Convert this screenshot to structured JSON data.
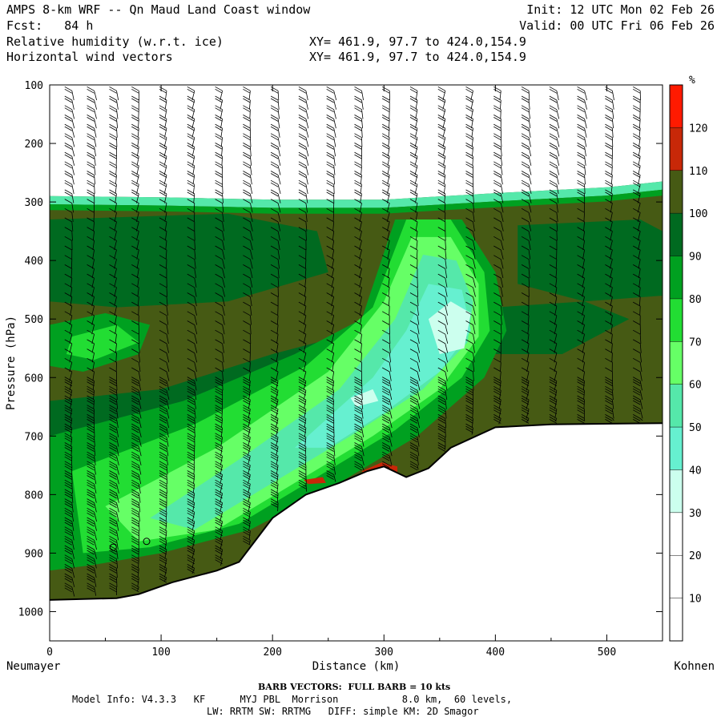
{
  "header": {
    "title_line": "AMPS 8-km WRF -- Qn Maud Land Coast window",
    "fcst_line": "Fcst:   84 h",
    "field1": "Relative humidity (w.r.t. ice)",
    "field2": "Horizontal wind vectors",
    "init_line": "Init: 12 UTC Mon 02 Feb 26",
    "valid_line": "Valid: 00 UTC Fri 06 Feb 26",
    "xy1": "XY= 461.9, 97.7 to 424.0,154.9",
    "xy2": "XY= 461.9, 97.7 to 424.0,154.9"
  },
  "chart_data": {
    "type": "heatmap",
    "xlabel": "Distance (km)",
    "ylabel": "Pressure (hPa)",
    "xlim": [
      0,
      550
    ],
    "ylim": [
      1050,
      100
    ],
    "x_ticks": [
      0,
      100,
      200,
      300,
      400,
      500
    ],
    "y_ticks": [
      100,
      200,
      300,
      400,
      500,
      600,
      700,
      800,
      900,
      1000
    ],
    "left_endpoint": "Neumayer",
    "right_endpoint": "Kohnen",
    "colorbar": {
      "unit": "%",
      "levels": [
        10,
        20,
        30,
        40,
        50,
        60,
        70,
        80,
        90,
        100,
        110,
        120
      ],
      "colors": [
        "#ffffff",
        "#ffffff",
        "#ffffff",
        "#ccffee",
        "#66f0d0",
        "#55e8aa",
        "#66ff66",
        "#22dd33",
        "#00a020",
        "#006a20",
        "#465a14",
        "#c82808",
        "#ff1a00"
      ]
    },
    "terrain_surface": [
      {
        "x": 0,
        "p": 980
      },
      {
        "x": 60,
        "p": 977
      },
      {
        "x": 80,
        "p": 970
      },
      {
        "x": 110,
        "p": 950
      },
      {
        "x": 150,
        "p": 930
      },
      {
        "x": 170,
        "p": 915
      },
      {
        "x": 200,
        "p": 840
      },
      {
        "x": 230,
        "p": 800
      },
      {
        "x": 260,
        "p": 780
      },
      {
        "x": 285,
        "p": 760
      },
      {
        "x": 300,
        "p": 752
      },
      {
        "x": 320,
        "p": 770
      },
      {
        "x": 340,
        "p": 755
      },
      {
        "x": 360,
        "p": 720
      },
      {
        "x": 400,
        "p": 685
      },
      {
        "x": 450,
        "p": 680
      },
      {
        "x": 550,
        "p": 678
      }
    ],
    "moist_layer_top": [
      {
        "x": 0,
        "p": 290
      },
      {
        "x": 100,
        "p": 292
      },
      {
        "x": 200,
        "p": 296
      },
      {
        "x": 300,
        "p": 296
      },
      {
        "x": 400,
        "p": 285
      },
      {
        "x": 500,
        "p": 275
      },
      {
        "x": 550,
        "p": 265
      }
    ],
    "rh_regions": [
      {
        "name": "saturated band",
        "rh": 105
      },
      {
        "name": "moist core",
        "rh": 95
      },
      {
        "name": "dry intrusion slot",
        "rh": 50
      },
      {
        "name": "dry intrusion core",
        "rh": 35
      },
      {
        "name": "near-surface supersaturation",
        "rh": 115
      }
    ],
    "barb_columns_x": [
      20,
      40,
      60,
      80,
      105,
      130,
      155,
      180,
      205,
      230,
      255,
      280,
      305,
      330,
      355,
      380,
      405,
      430,
      455,
      480,
      505,
      530
    ],
    "calm_points": [
      {
        "x": 57,
        "p": 890
      },
      {
        "x": 87,
        "p": 880
      }
    ]
  },
  "footer": {
    "barb": "BARB VECTORS:  FULL BARB = 10 kts",
    "model1": "Model Info: V4.3.3   KF      MYJ PBL  Morrison           8.0 km,  60 levels,",
    "model2": "LW: RRTM SW: RRTMG   DIFF: simple KM: 2D Smagor"
  }
}
